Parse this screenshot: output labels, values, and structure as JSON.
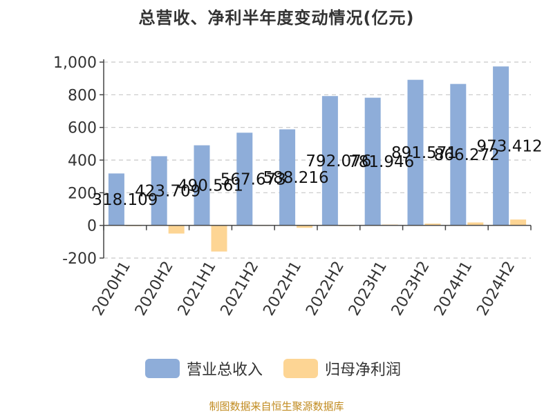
{
  "title": "总营收、净利半年度变动情况(亿元)",
  "source_note": "制图数据来自恒生聚源数据库",
  "legend": [
    {
      "label": "营业总收入",
      "color": "#8eadd9"
    },
    {
      "label": "归母净利润",
      "color": "#fdd594"
    }
  ],
  "chart_data": {
    "type": "bar",
    "title": "总营收、净利半年度变动情况(亿元)",
    "xlabel": "",
    "ylabel": "",
    "categories": [
      "2020H1",
      "2020H2",
      "2021H1",
      "2021H2",
      "2022H1",
      "2022H2",
      "2023H1",
      "2023H2",
      "2024H1",
      "2024H2"
    ],
    "y_ticks": [
      -200,
      0,
      200,
      400,
      600,
      800,
      1000
    ],
    "y_tick_labels": [
      "-200",
      "0",
      "200",
      "400",
      "600",
      "800",
      "1,000"
    ],
    "ylim": [
      -200,
      1000
    ],
    "grid": true,
    "legend_position": "bottom",
    "series": [
      {
        "name": "营业总收入",
        "color": "#8eadd9",
        "values": [
          318.109,
          423.709,
          490.561,
          567.673,
          588.216,
          792.076,
          781.946,
          891.571,
          866.272,
          973.412
        ],
        "data_labels": [
          "318.109",
          "423.709",
          "490.561",
          "567.673",
          "588.216",
          "792.076",
          "781.946",
          "891.571",
          "866.272",
          "973.412"
        ]
      },
      {
        "name": "归母净利润",
        "color": "#fdd594",
        "values": [
          2,
          -50,
          -160,
          3,
          -15,
          2,
          5,
          11,
          18,
          36
        ]
      }
    ]
  }
}
